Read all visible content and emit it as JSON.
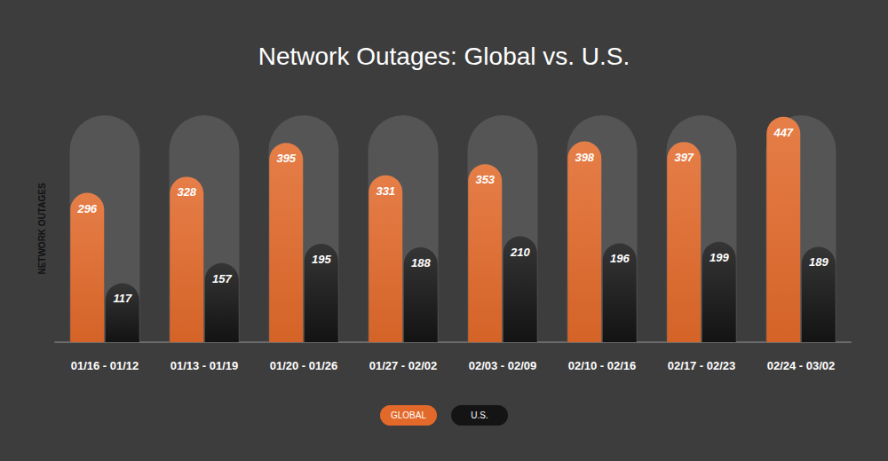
{
  "chart_data": {
    "type": "bar",
    "title": "Network Outages: Global vs. U.S.",
    "y_label": "NETWORK OUTAGES",
    "categories": [
      "01/16 - 01/12",
      "01/13 - 01/19",
      "01/20 - 01/26",
      "01/27 - 02/02",
      "02/03 - 02/09",
      "02/10 - 02/16",
      "02/17 - 02/23",
      "02/24 - 03/02"
    ],
    "series": [
      {
        "name": "GLOBAL",
        "color": "#e2692a",
        "values": [
          296,
          328,
          395,
          331,
          353,
          398,
          397,
          447
        ]
      },
      {
        "name": "U.S.",
        "color": "#141414",
        "values": [
          117,
          157,
          195,
          188,
          210,
          196,
          199,
          189
        ]
      }
    ],
    "ylim": [
      0,
      450
    ],
    "data_labels": true,
    "tick_labels": "x",
    "grid": false,
    "legend": "bottom"
  }
}
